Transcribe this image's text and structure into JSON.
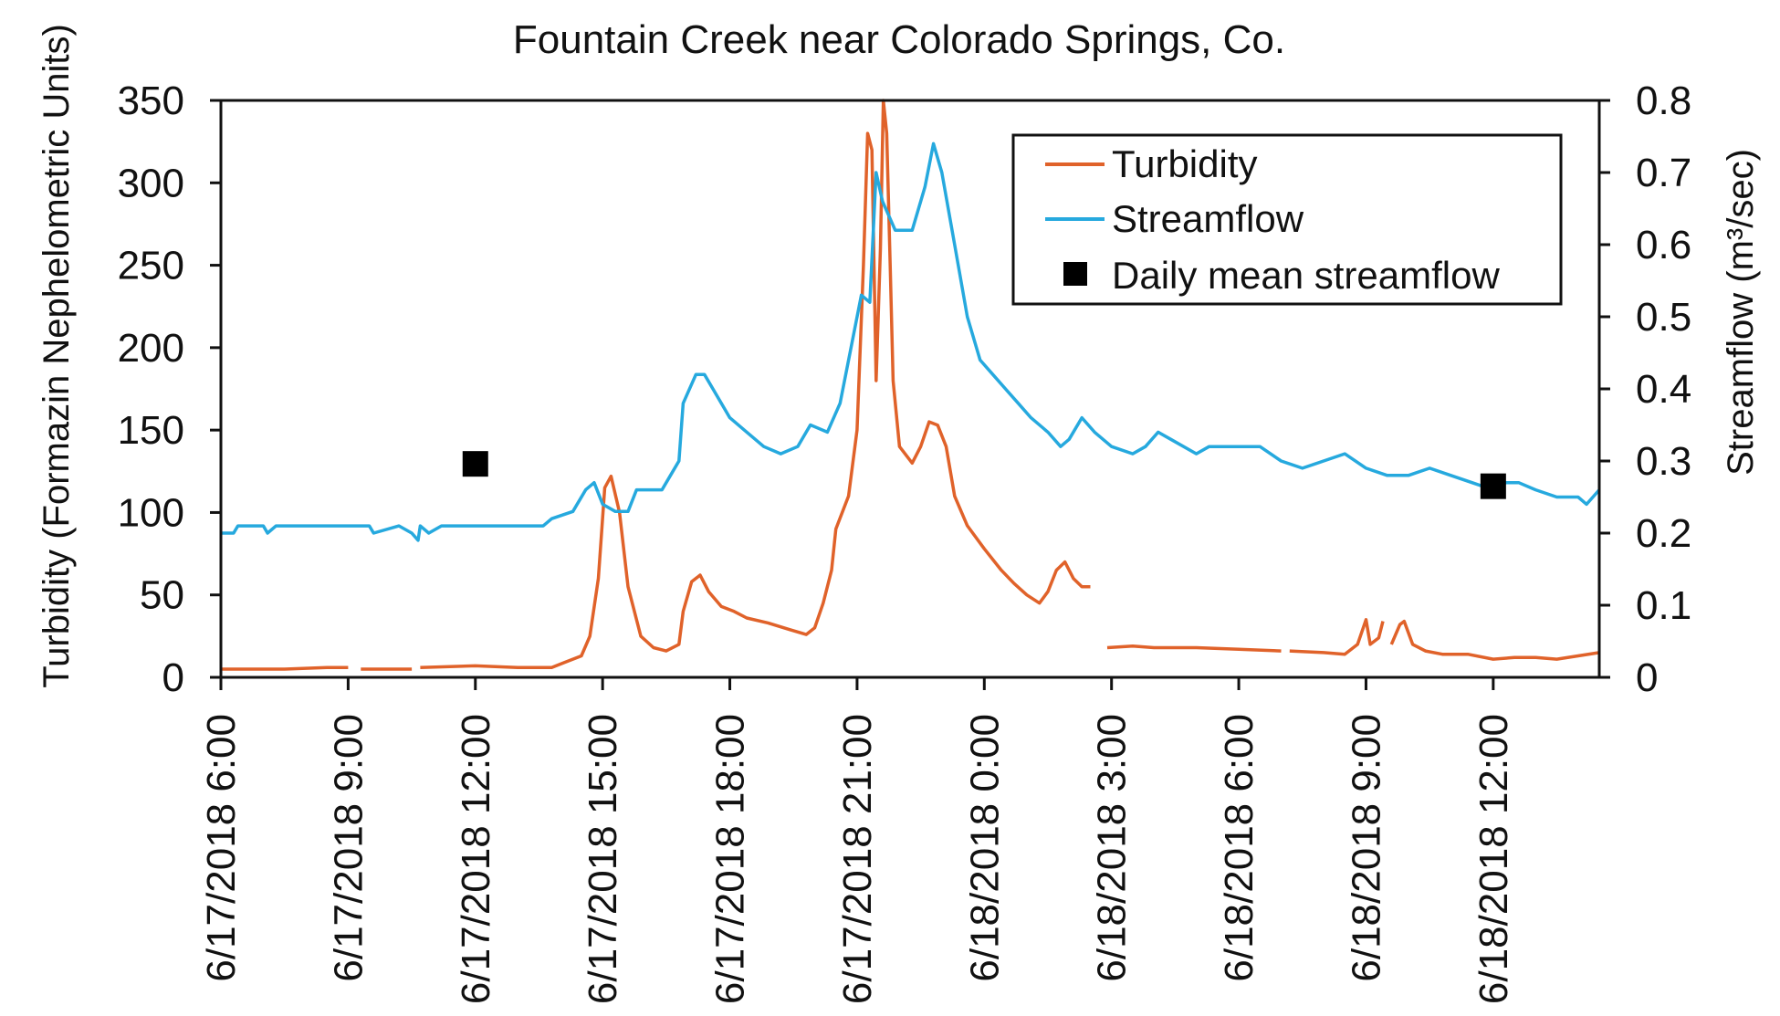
{
  "chart_data": {
    "type": "line",
    "title": "Fountain Creek near Colorado Springs, Co.",
    "xlabel": "",
    "ylabel": "Turbidity (Formazin Nephelometric Units)",
    "y2label": "Streamflow (m³/sec)",
    "ylim": [
      0,
      350
    ],
    "y2lim": [
      0,
      0.8
    ],
    "xlim_hours_since_6_17_2018_0600": [
      0,
      32.5
    ],
    "x_ticks": [
      {
        "h": 0,
        "label": "6/17/2018 6:00"
      },
      {
        "h": 3,
        "label": "6/17/2018 9:00"
      },
      {
        "h": 6,
        "label": "6/17/2018 12:00"
      },
      {
        "h": 9,
        "label": "6/17/2018 15:00"
      },
      {
        "h": 12,
        "label": "6/17/2018 18:00"
      },
      {
        "h": 15,
        "label": "6/17/2018 21:00"
      },
      {
        "h": 18,
        "label": "6/18/2018 0:00"
      },
      {
        "h": 21,
        "label": "6/18/2018 3:00"
      },
      {
        "h": 24,
        "label": "6/18/2018 6:00"
      },
      {
        "h": 27,
        "label": "6/18/2018 9:00"
      },
      {
        "h": 30,
        "label": "6/18/2018 12:00"
      }
    ],
    "y_ticks": [
      "0",
      "50",
      "100",
      "150",
      "200",
      "250",
      "300",
      "350"
    ],
    "y2_ticks": [
      "0",
      "0.1",
      "0.2",
      "0.3",
      "0.4",
      "0.5",
      "0.6",
      "0.7",
      "0.8"
    ],
    "grid": false,
    "legend_placement": "top-right",
    "series": [
      {
        "name": "Turbidity",
        "axis": "left",
        "color": "#e0622a",
        "segments": [
          [
            [
              0,
              5
            ],
            [
              1.5,
              5
            ],
            [
              2.5,
              6
            ],
            [
              3,
              6
            ]
          ],
          [
            [
              3.3,
              5
            ],
            [
              4.5,
              5
            ]
          ],
          [
            [
              4.7,
              6
            ],
            [
              6,
              7
            ],
            [
              7,
              6
            ],
            [
              7.8,
              6
            ],
            [
              8.1,
              9
            ],
            [
              8.5,
              13
            ],
            [
              8.7,
              25
            ],
            [
              8.9,
              60
            ],
            [
              9.05,
              115
            ],
            [
              9.2,
              122
            ],
            [
              9.4,
              100
            ],
            [
              9.6,
              55
            ],
            [
              9.9,
              25
            ],
            [
              10.2,
              18
            ],
            [
              10.5,
              16
            ],
            [
              10.8,
              20
            ],
            [
              10.9,
              40
            ],
            [
              11.1,
              58
            ],
            [
              11.3,
              62
            ],
            [
              11.5,
              52
            ],
            [
              11.8,
              43
            ],
            [
              12.1,
              40
            ],
            [
              12.4,
              36
            ],
            [
              12.9,
              33
            ],
            [
              13.4,
              29
            ],
            [
              13.8,
              26
            ],
            [
              14.0,
              30
            ],
            [
              14.2,
              45
            ],
            [
              14.4,
              65
            ],
            [
              14.5,
              90
            ],
            [
              14.8,
              110
            ],
            [
              15.0,
              150
            ],
            [
              15.15,
              250
            ],
            [
              15.25,
              330
            ],
            [
              15.35,
              320
            ],
            [
              15.45,
              180
            ],
            [
              15.55,
              260
            ],
            [
              15.62,
              350
            ],
            [
              15.7,
              330
            ],
            [
              15.78,
              250
            ],
            [
              15.85,
              180
            ],
            [
              16.0,
              140
            ],
            [
              16.3,
              130
            ],
            [
              16.5,
              140
            ],
            [
              16.7,
              155
            ],
            [
              16.9,
              153
            ],
            [
              17.1,
              140
            ],
            [
              17.3,
              110
            ],
            [
              17.6,
              92
            ],
            [
              18.0,
              78
            ],
            [
              18.4,
              65
            ],
            [
              18.7,
              57
            ],
            [
              19.0,
              50
            ],
            [
              19.3,
              45
            ],
            [
              19.5,
              52
            ],
            [
              19.7,
              65
            ],
            [
              19.9,
              70
            ],
            [
              20.1,
              60
            ],
            [
              20.3,
              55
            ],
            [
              20.5,
              55
            ]
          ]
        ],
        "segments_tail": [
          [
            [
              20.9,
              18
            ],
            [
              21.5,
              19
            ],
            [
              22,
              18
            ],
            [
              23,
              18
            ],
            [
              24,
              17
            ],
            [
              25,
              16
            ]
          ],
          [
            [
              25.2,
              16
            ],
            [
              26,
              15
            ],
            [
              26.5,
              14
            ],
            [
              26.8,
              20
            ],
            [
              27.0,
              35
            ],
            [
              27.1,
              20
            ],
            [
              27.3,
              24
            ],
            [
              27.4,
              34
            ]
          ],
          [
            [
              27.6,
              20
            ],
            [
              27.8,
              32
            ],
            [
              27.9,
              34
            ],
            [
              28.1,
              20
            ],
            [
              28.4,
              16
            ],
            [
              28.8,
              14
            ],
            [
              29.4,
              14
            ],
            [
              30,
              11
            ],
            [
              30.5,
              12
            ],
            [
              31,
              12
            ],
            [
              31.5,
              11
            ],
            [
              32,
              13
            ],
            [
              32.5,
              15
            ]
          ]
        ]
      },
      {
        "name": "Streamflow",
        "axis": "right",
        "color": "#26a9de",
        "points": [
          [
            0,
            0.2
          ],
          [
            0.3,
            0.2
          ],
          [
            0.4,
            0.21
          ],
          [
            1.0,
            0.21
          ],
          [
            1.1,
            0.2
          ],
          [
            1.3,
            0.21
          ],
          [
            3.5,
            0.21
          ],
          [
            3.6,
            0.2
          ],
          [
            4.2,
            0.21
          ],
          [
            4.5,
            0.2
          ],
          [
            4.65,
            0.19
          ],
          [
            4.7,
            0.21
          ],
          [
            4.9,
            0.2
          ],
          [
            5.2,
            0.21
          ],
          [
            7.6,
            0.21
          ],
          [
            7.8,
            0.22
          ],
          [
            8.3,
            0.23
          ],
          [
            8.6,
            0.26
          ],
          [
            8.8,
            0.27
          ],
          [
            9.0,
            0.24
          ],
          [
            9.3,
            0.23
          ],
          [
            9.6,
            0.23
          ],
          [
            9.8,
            0.26
          ],
          [
            10.4,
            0.26
          ],
          [
            10.6,
            0.28
          ],
          [
            10.8,
            0.3
          ],
          [
            10.9,
            0.38
          ],
          [
            11.2,
            0.42
          ],
          [
            11.4,
            0.42
          ],
          [
            11.6,
            0.4
          ],
          [
            12.0,
            0.36
          ],
          [
            12.4,
            0.34
          ],
          [
            12.8,
            0.32
          ],
          [
            13.2,
            0.31
          ],
          [
            13.6,
            0.32
          ],
          [
            13.9,
            0.35
          ],
          [
            14.3,
            0.34
          ],
          [
            14.6,
            0.38
          ],
          [
            14.9,
            0.47
          ],
          [
            15.1,
            0.53
          ],
          [
            15.3,
            0.52
          ],
          [
            15.45,
            0.7
          ],
          [
            15.6,
            0.66
          ],
          [
            15.9,
            0.62
          ],
          [
            16.3,
            0.62
          ],
          [
            16.6,
            0.68
          ],
          [
            16.8,
            0.74
          ],
          [
            17.0,
            0.7
          ],
          [
            17.3,
            0.6
          ],
          [
            17.6,
            0.5
          ],
          [
            17.9,
            0.44
          ],
          [
            18.2,
            0.42
          ],
          [
            18.5,
            0.4
          ],
          [
            18.8,
            0.38
          ],
          [
            19.1,
            0.36
          ],
          [
            19.5,
            0.34
          ],
          [
            19.8,
            0.32
          ],
          [
            20.0,
            0.33
          ],
          [
            20.3,
            0.36
          ],
          [
            20.6,
            0.34
          ],
          [
            21.0,
            0.32
          ],
          [
            21.5,
            0.31
          ],
          [
            21.8,
            0.32
          ],
          [
            22.1,
            0.34
          ],
          [
            22.4,
            0.33
          ],
          [
            23,
            0.31
          ],
          [
            23.3,
            0.32
          ],
          [
            24,
            0.32
          ],
          [
            24.5,
            0.32
          ],
          [
            25,
            0.3
          ],
          [
            25.5,
            0.29
          ],
          [
            26,
            0.3
          ],
          [
            26.5,
            0.31
          ],
          [
            27.0,
            0.29
          ],
          [
            27.5,
            0.28
          ],
          [
            28,
            0.28
          ],
          [
            28.5,
            0.29
          ],
          [
            29,
            0.28
          ],
          [
            29.5,
            0.27
          ],
          [
            30,
            0.26
          ],
          [
            30.3,
            0.27
          ],
          [
            30.6,
            0.27
          ],
          [
            31,
            0.26
          ],
          [
            31.5,
            0.25
          ],
          [
            32,
            0.25
          ],
          [
            32.2,
            0.24
          ],
          [
            32.5,
            0.26
          ]
        ]
      },
      {
        "name": "Daily mean streamflow",
        "axis": "right",
        "color": "#000000",
        "points": [
          [
            6,
            0.296
          ],
          [
            30,
            0.265
          ]
        ]
      }
    ]
  }
}
